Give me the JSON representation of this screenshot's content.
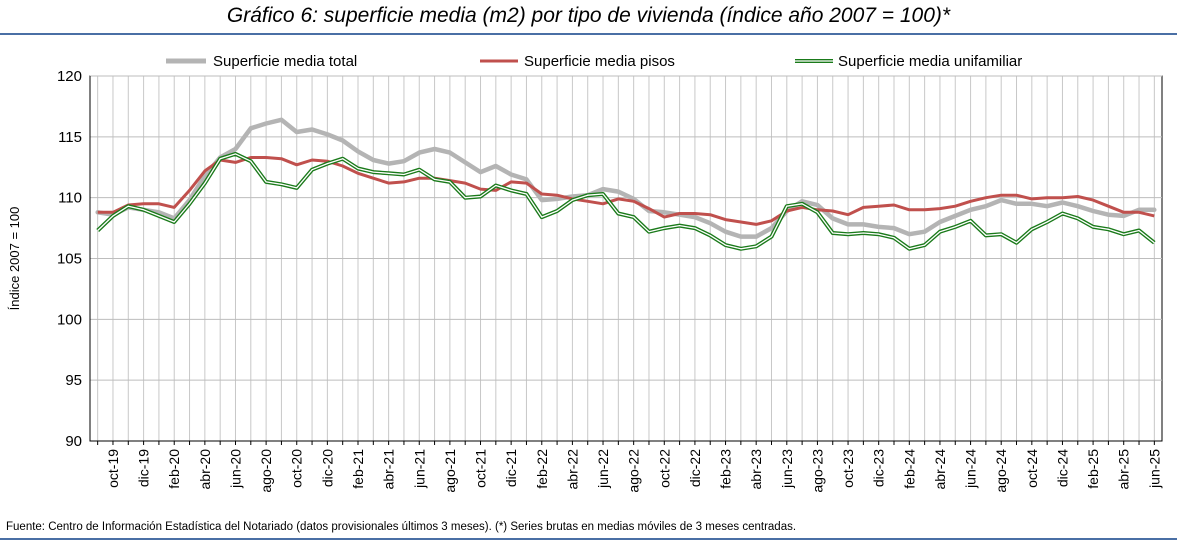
{
  "title": "Gráfico 6: superficie media (m2) por tipo de vivienda (índice año 2007 = 100)*",
  "source": "Fuente: Centro de Información Estadística del Notariado (datos provisionales últimos 3 meses). (*) Series brutas en medias móviles de 3 meses centradas.",
  "chart_data": {
    "type": "line",
    "ylabel": "Índice 2007 = 100",
    "xlabel": "",
    "ylim": [
      90,
      120
    ],
    "yticks": [
      90,
      95,
      100,
      105,
      110,
      115,
      120
    ],
    "grid": true,
    "legend_position": "top",
    "x": [
      "sep-19",
      "oct-19",
      "nov-19",
      "dic-19",
      "ene-20",
      "feb-20",
      "mar-20",
      "abr-20",
      "may-20",
      "jun-20",
      "jul-20",
      "ago-20",
      "sep-20",
      "oct-20",
      "nov-20",
      "dic-20",
      "ene-21",
      "feb-21",
      "mar-21",
      "abr-21",
      "may-21",
      "jun-21",
      "jul-21",
      "ago-21",
      "sep-21",
      "oct-21",
      "nov-21",
      "dic-21",
      "ene-22",
      "feb-22",
      "mar-22",
      "abr-22",
      "may-22",
      "jun-22",
      "jul-22",
      "ago-22",
      "sep-22",
      "oct-22",
      "nov-22",
      "dic-22",
      "ene-23",
      "feb-23",
      "mar-23",
      "abr-23",
      "may-23",
      "jun-23",
      "jul-23",
      "ago-23",
      "sep-23",
      "oct-23",
      "nov-23",
      "dic-23",
      "ene-24",
      "feb-24",
      "mar-24",
      "abr-24",
      "may-24",
      "jun-24",
      "jul-24",
      "ago-24",
      "sep-24",
      "oct-24",
      "nov-24",
      "dic-24",
      "ene-25",
      "feb-25",
      "mar-25",
      "abr-25",
      "may-25",
      "jun-25"
    ],
    "xtick_labels": [
      "oct-19",
      "dic-19",
      "feb-20",
      "abr-20",
      "jun-20",
      "ago-20",
      "oct-20",
      "dic-20",
      "feb-21",
      "abr-21",
      "jun-21",
      "ago-21",
      "oct-21",
      "dic-21",
      "feb-22",
      "abr-22",
      "jun-22",
      "ago-22",
      "oct-22",
      "dic-22",
      "feb-23",
      "abr-23",
      "jun-23",
      "ago-23",
      "oct-23",
      "dic-23",
      "feb-24",
      "abr-24",
      "jun-24",
      "ago-24",
      "oct-24",
      "dic-24",
      "feb-25",
      "abr-25",
      "jun-25"
    ],
    "series": [
      {
        "name": "Superficie media total",
        "color": "#b4b4b4",
        "style": "thick",
        "values": [
          108.8,
          108.6,
          109.2,
          109.0,
          108.8,
          108.3,
          109.8,
          111.8,
          113.3,
          114.0,
          115.7,
          116.1,
          116.4,
          115.4,
          115.6,
          115.2,
          114.7,
          113.8,
          113.1,
          112.8,
          113.0,
          113.7,
          114.0,
          113.7,
          112.9,
          112.1,
          112.6,
          111.9,
          111.5,
          109.8,
          109.9,
          110.1,
          110.2,
          110.7,
          110.5,
          109.9,
          108.9,
          108.8,
          108.6,
          108.4,
          107.9,
          107.2,
          106.8,
          106.8,
          107.5,
          108.9,
          109.7,
          109.4,
          108.3,
          107.8,
          107.8,
          107.6,
          107.5,
          107.0,
          107.2,
          108.0,
          108.5,
          109.0,
          109.3,
          109.8,
          109.5,
          109.5,
          109.3,
          109.6,
          109.3,
          108.9,
          108.6,
          108.5,
          109.0,
          109.0
        ]
      },
      {
        "name": "Superficie media pisos",
        "color": "#c0504d",
        "style": "solid",
        "values": [
          108.8,
          108.8,
          109.4,
          109.5,
          109.5,
          109.2,
          110.6,
          112.2,
          113.1,
          112.9,
          113.3,
          113.3,
          113.2,
          112.7,
          113.1,
          113.0,
          112.6,
          112.0,
          111.6,
          111.2,
          111.3,
          111.6,
          111.6,
          111.4,
          111.2,
          110.7,
          110.6,
          111.3,
          111.2,
          110.3,
          110.2,
          109.9,
          109.7,
          109.5,
          109.9,
          109.7,
          109.1,
          108.4,
          108.7,
          108.7,
          108.6,
          108.2,
          108.0,
          107.8,
          108.1,
          108.9,
          109.2,
          109.0,
          108.9,
          108.6,
          109.2,
          109.3,
          109.4,
          109.0,
          109.0,
          109.1,
          109.3,
          109.7,
          110.0,
          110.2,
          110.2,
          109.9,
          110.0,
          110.0,
          110.1,
          109.8,
          109.3,
          108.8,
          108.8,
          108.5
        ]
      },
      {
        "name": "Superficie media unifamiliar",
        "color": "#1a7a1a",
        "style": "double",
        "values": [
          107.3,
          108.5,
          109.3,
          109.0,
          108.5,
          108.0,
          109.5,
          111.2,
          113.2,
          113.6,
          113.0,
          111.3,
          111.1,
          110.8,
          112.3,
          112.8,
          113.2,
          112.4,
          112.1,
          112.0,
          111.9,
          112.3,
          111.5,
          111.3,
          110.0,
          110.1,
          111.0,
          110.6,
          110.3,
          108.4,
          108.9,
          109.8,
          110.2,
          110.3,
          108.7,
          108.4,
          107.2,
          107.5,
          107.7,
          107.5,
          106.9,
          106.1,
          105.8,
          106.0,
          106.8,
          109.3,
          109.5,
          108.8,
          107.1,
          107.0,
          107.1,
          107.0,
          106.7,
          105.8,
          106.1,
          107.2,
          107.6,
          108.1,
          106.9,
          107.0,
          106.3,
          107.4,
          108.0,
          108.7,
          108.3,
          107.6,
          107.4,
          107.0,
          107.3,
          106.3
        ]
      }
    ]
  }
}
